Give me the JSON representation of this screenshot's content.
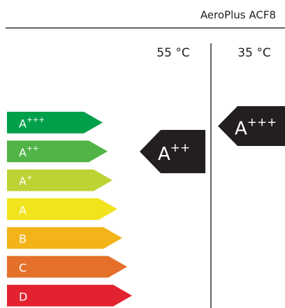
{
  "header": {
    "model": "AeroPlus ACF8"
  },
  "columns": [
    "55 °C",
    "35 °C"
  ],
  "scale": [
    {
      "letter": "A",
      "sup": "+++",
      "color": "#00a04b"
    },
    {
      "letter": "A",
      "sup": "++",
      "color": "#50b447"
    },
    {
      "letter": "A",
      "sup": "+",
      "color": "#bdd333"
    },
    {
      "letter": "A",
      "sup": null,
      "color": "#f1e41c"
    },
    {
      "letter": "B",
      "sup": null,
      "color": "#f3b419"
    },
    {
      "letter": "C",
      "sup": null,
      "color": "#e5702a"
    },
    {
      "letter": "D",
      "sup": null,
      "color": "#e2232f"
    }
  ],
  "ratings": [
    {
      "letter": "A",
      "sup": "++"
    },
    {
      "letter": "A",
      "sup": "+++"
    }
  ]
}
